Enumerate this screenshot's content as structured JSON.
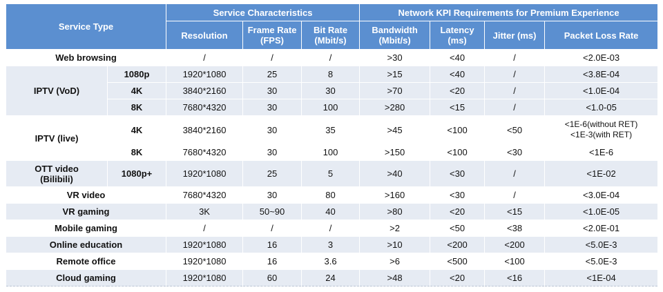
{
  "header": {
    "service_type": "Service Type",
    "group_service": "Service Characteristics",
    "group_network": "Network KPI Requirements for Premium Experience",
    "col_resolution": "Resolution",
    "col_framerate_1": "Frame Rate",
    "col_framerate_2": "(FPS)",
    "col_bitrate_1": "Bit Rate",
    "col_bitrate_2": "(Mbit/s)",
    "col_bandwidth_1": "Bandwidth",
    "col_bandwidth_2": "(Mbit/s)",
    "col_latency_1": "Latency",
    "col_latency_2": "(ms)",
    "col_jitter": "Jitter (ms)",
    "col_loss": "Packet Loss Rate"
  },
  "groups": {
    "iptv_vod": "IPTV (VoD)",
    "iptv_live": "IPTV (live)",
    "ott_1": "OTT video",
    "ott_2": "(Bilibili)"
  },
  "rows": [
    {
      "name": "Web browsing",
      "res": "/",
      "fps": "/",
      "bitrate": "/",
      "bw": ">30",
      "lat": "<40",
      "jit": "/",
      "loss": "<2.0E-03"
    },
    {
      "name": "1080p",
      "res": "1920*1080",
      "fps": "25",
      "bitrate": "8",
      "bw": ">15",
      "lat": "<40",
      "jit": "/",
      "loss": "<3.8E-04"
    },
    {
      "name": "4K",
      "res": "3840*2160",
      "fps": "30",
      "bitrate": "30",
      "bw": ">70",
      "lat": "<20",
      "jit": "/",
      "loss": "<1.0E-04"
    },
    {
      "name": "8K",
      "res": "7680*4320",
      "fps": "30",
      "bitrate": "100",
      "bw": ">280",
      "lat": "<15",
      "jit": "/",
      "loss": "<1.0-05"
    },
    {
      "name": "4K",
      "res": "3840*2160",
      "fps": "30",
      "bitrate": "35",
      "bw": ">45",
      "lat": "<100",
      "jit": "<50",
      "loss_1": "<1E-6(without RET)",
      "loss_2": "<1E-3(with RET)"
    },
    {
      "name": "8K",
      "res": "7680*4320",
      "fps": "30",
      "bitrate": "100",
      "bw": ">150",
      "lat": "<100",
      "jit": "<30",
      "loss": "<1E-6"
    },
    {
      "name": "1080p+",
      "res": "1920*1080",
      "fps": "25",
      "bitrate": "5",
      "bw": ">40",
      "lat": "<30",
      "jit": "/",
      "loss": "<1E-02"
    },
    {
      "name": "VR video",
      "res": "7680*4320",
      "fps": "30",
      "bitrate": "80",
      "bw": ">160",
      "lat": "<30",
      "jit": "/",
      "loss": "<3.0E-04"
    },
    {
      "name": "VR gaming",
      "res": "3K",
      "fps": "50~90",
      "bitrate": "40",
      "bw": ">80",
      "lat": "<20",
      "jit": "<15",
      "loss": "<1.0E-05"
    },
    {
      "name": "Mobile gaming",
      "res": "/",
      "fps": "/",
      "bitrate": "/",
      "bw": ">2",
      "lat": "<50",
      "jit": "<38",
      "loss": "<2.0E-01"
    },
    {
      "name": "Online education",
      "res": "1920*1080",
      "fps": "16",
      "bitrate": "3",
      "bw": ">10",
      "lat": "<200",
      "jit": "<200",
      "loss": "<5.0E-3"
    },
    {
      "name": "Remote office",
      "res": "1920*1080",
      "fps": "16",
      "bitrate": "3.6",
      "bw": ">6",
      "lat": "<500",
      "jit": "<100",
      "loss": "<5.0E-3"
    },
    {
      "name": "Cloud gaming",
      "res": "1920*1080",
      "fps": "60",
      "bitrate": "24",
      "bw": ">48",
      "lat": "<20",
      "jit": "<16",
      "loss": "<1E-04"
    }
  ]
}
